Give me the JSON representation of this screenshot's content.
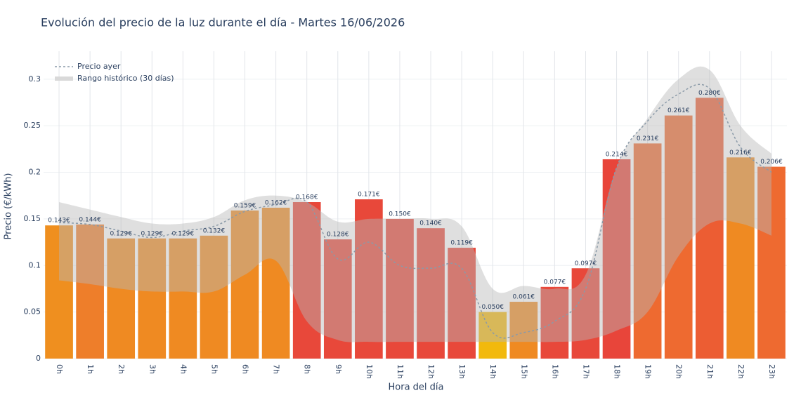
{
  "chart_data": {
    "type": "bar",
    "title": "Evolución del precio de la luz durante el día - Martes 16/06/2026",
    "x_label": "Hora del día",
    "y_label": "Precio (€/kWh)",
    "categories": [
      "0h",
      "1h",
      "2h",
      "3h",
      "4h",
      "5h",
      "6h",
      "7h",
      "8h",
      "9h",
      "10h",
      "11h",
      "12h",
      "13h",
      "14h",
      "15h",
      "16h",
      "17h",
      "18h",
      "19h",
      "20h",
      "21h",
      "22h",
      "23h"
    ],
    "values": [
      0.143,
      0.144,
      0.129,
      0.129,
      0.129,
      0.132,
      0.159,
      0.162,
      0.168,
      0.128,
      0.171,
      0.15,
      0.14,
      0.119,
      0.05,
      0.061,
      0.077,
      0.097,
      0.214,
      0.231,
      0.261,
      0.28,
      0.216,
      0.206
    ],
    "value_labels": [
      "0.143€",
      "0.144€",
      "0.129€",
      "0.129€",
      "0.129€",
      "0.132€",
      "0.159€",
      "0.162€",
      "0.168€",
      "0.128€",
      "0.171€",
      "0.150€",
      "0.140€",
      "0.119€",
      "0.050€",
      "0.061€",
      "0.077€",
      "0.097€",
      "0.214€",
      "0.231€",
      "0.261€",
      "0.280€",
      "0.216€",
      "0.206€"
    ],
    "colors": [
      "#ef8f1f",
      "#ee7e2a",
      "#ef8a22",
      "#ef8a22",
      "#ef8a22",
      "#ef8a22",
      "#ef8a22",
      "#ef8a22",
      "#e8483a",
      "#e8483a",
      "#e8483a",
      "#e8483a",
      "#e8483a",
      "#e8483a",
      "#f2b90c",
      "#ef8a22",
      "#e8483a",
      "#e8483a",
      "#e8453a",
      "#ee6a30",
      "#ee6a30",
      "#ec5d33",
      "#ef8a22",
      "#ee6a30"
    ],
    "lines": [
      {
        "name": "Precio ayer",
        "color": "#8a9aa8",
        "values": [
          0.146,
          0.144,
          0.137,
          0.13,
          0.137,
          0.142,
          0.158,
          0.165,
          0.168,
          0.107,
          0.125,
          0.1,
          0.097,
          0.097,
          0.028,
          0.028,
          0.04,
          0.075,
          0.205,
          0.255,
          0.284,
          0.29,
          0.227,
          0.2
        ]
      }
    ],
    "band": {
      "name": "Rango histórico (30 días)",
      "color": "rgba(185,185,185,0.45)",
      "upper": [
        0.168,
        0.16,
        0.152,
        0.145,
        0.145,
        0.152,
        0.17,
        0.175,
        0.168,
        0.147,
        0.15,
        0.15,
        0.15,
        0.142,
        0.075,
        0.078,
        0.075,
        0.09,
        0.205,
        0.258,
        0.3,
        0.31,
        0.25,
        0.22
      ],
      "lower": [
        0.084,
        0.08,
        0.075,
        0.072,
        0.072,
        0.072,
        0.09,
        0.105,
        0.04,
        0.02,
        0.018,
        0.018,
        0.018,
        0.018,
        0.018,
        0.018,
        0.018,
        0.02,
        0.03,
        0.05,
        0.11,
        0.145,
        0.145,
        0.132
      ]
    },
    "ylim": [
      0,
      0.33
    ],
    "yticks": [
      0,
      0.05,
      0.1,
      0.15,
      0.2,
      0.25,
      0.3
    ],
    "grid": true
  }
}
